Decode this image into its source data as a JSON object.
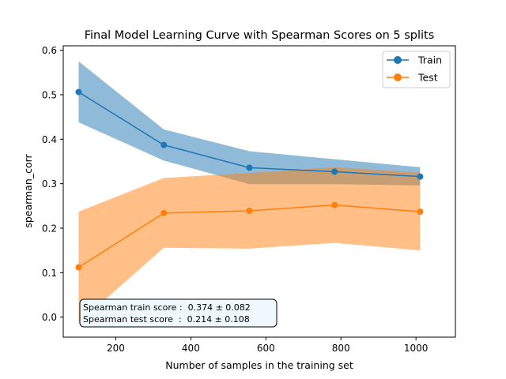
{
  "chart_data": {
    "type": "line",
    "title": "Final Model Learning Curve with Spearman Scores on 5 splits",
    "xlabel": "Number of samples in the training set",
    "ylabel": "spearman_corr",
    "xlim": [
      60,
      1105
    ],
    "ylim": [
      -0.045,
      0.61
    ],
    "x_ticks": [
      200,
      400,
      600,
      800,
      1000
    ],
    "y_ticks": [
      0.0,
      0.1,
      0.2,
      0.3,
      0.4,
      0.5,
      0.6
    ],
    "x_tick_labels": [
      "200",
      "400",
      "600",
      "800",
      "1000"
    ],
    "y_tick_labels": [
      "0.0",
      "0.1",
      "0.2",
      "0.3",
      "0.4",
      "0.5",
      "0.6"
    ],
    "grid": false,
    "legend_position": "top-right",
    "x": [
      101,
      328,
      556,
      783,
      1011
    ],
    "series": [
      {
        "name": "Train",
        "color": "#1f77b4",
        "band_color": "#1f77b4",
        "values": [
          0.506,
          0.387,
          0.336,
          0.327,
          0.316
        ],
        "lower": [
          0.438,
          0.352,
          0.299,
          0.299,
          0.296
        ],
        "upper": [
          0.575,
          0.422,
          0.373,
          0.355,
          0.337
        ]
      },
      {
        "name": "Test",
        "color": "#ff7f0e",
        "band_color": "#ff7f0e",
        "values": [
          0.112,
          0.234,
          0.239,
          0.252,
          0.237
        ],
        "lower": [
          -0.013,
          0.156,
          0.154,
          0.167,
          0.15
        ],
        "upper": [
          0.237,
          0.313,
          0.324,
          0.337,
          0.325
        ]
      }
    ],
    "annotation": {
      "position": "bottom-left",
      "lines": [
        "Spearman train score :  0.374 ± 0.082",
        "Spearman test score  :  0.214 ± 0.108"
      ]
    }
  }
}
